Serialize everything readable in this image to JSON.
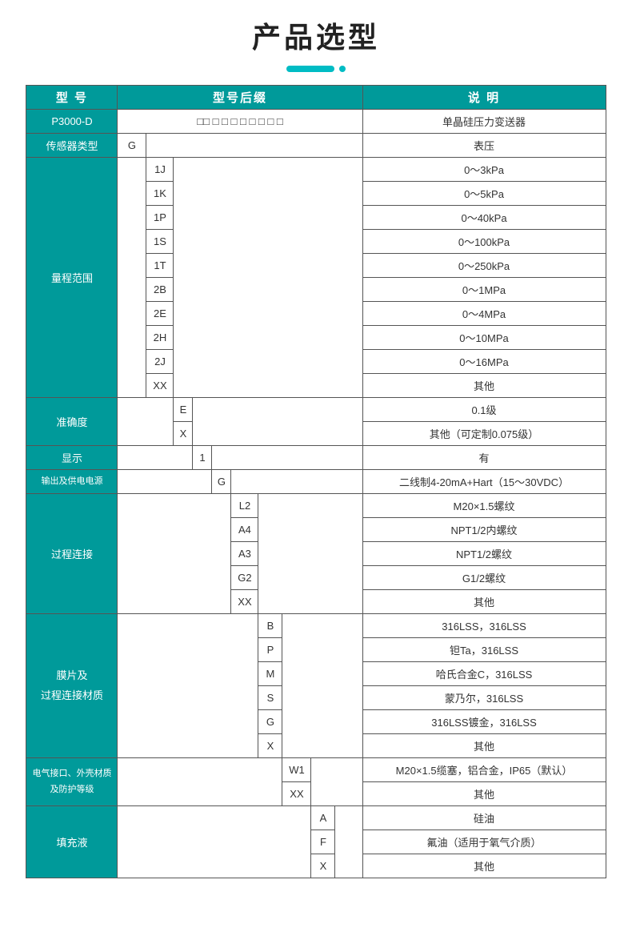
{
  "title": "产品选型",
  "colors": {
    "teal": "#009a9a",
    "accent": "#00bcc4",
    "border": "#555555",
    "text": "#333333",
    "white": "#ffffff"
  },
  "headers": {
    "model": "型 号",
    "suffix": "型号后缀",
    "desc": "说 明"
  },
  "model_id": "P3000-D",
  "placeholder_row": "□□  □  □ □ □ □  □  □  □",
  "labels": {
    "sensor_type": "传感器类型",
    "range": "量程范围",
    "accuracy": "准确度",
    "display": "显示",
    "output_power": "输出及供电电源",
    "process_conn": "过程连接",
    "diaphragm": "膜片及\n过程连接材质",
    "elec_case": "电气接口、外壳材质\n及防护等级",
    "fill_fluid": "填充液"
  },
  "sensor_type": {
    "code": "G",
    "desc": "表压"
  },
  "first_desc": "单晶硅压力变送器",
  "ranges": [
    {
      "code": "1J",
      "desc": "0～3kPa"
    },
    {
      "code": "1K",
      "desc": "0～5kPa"
    },
    {
      "code": "1P",
      "desc": "0～40kPa"
    },
    {
      "code": "1S",
      "desc": "0～100kPa"
    },
    {
      "code": "1T",
      "desc": "0～250kPa"
    },
    {
      "code": "2B",
      "desc": "0～1MPa"
    },
    {
      "code": "2E",
      "desc": "0～4MPa"
    },
    {
      "code": "2H",
      "desc": "0～10MPa"
    },
    {
      "code": "2J",
      "desc": "0～16MPa"
    },
    {
      "code": "XX",
      "desc": "其他"
    }
  ],
  "accuracy": [
    {
      "code": "E",
      "desc": "0.1级"
    },
    {
      "code": "X",
      "desc": "其他（可定制0.075级）"
    }
  ],
  "display": {
    "code": "1",
    "desc": "有"
  },
  "output_power": {
    "code": "G",
    "desc": "二线制4-20mA+Hart（15～30VDC）"
  },
  "process_conn": [
    {
      "code": "L2",
      "desc": "M20×1.5螺纹"
    },
    {
      "code": "A4",
      "desc": "NPT1/2内螺纹"
    },
    {
      "code": "A3",
      "desc": "NPT1/2螺纹"
    },
    {
      "code": "G2",
      "desc": "G1/2螺纹"
    },
    {
      "code": "XX",
      "desc": "其他"
    }
  ],
  "diaphragm": [
    {
      "code": "B",
      "desc": "316LSS，316LSS"
    },
    {
      "code": "P",
      "desc": "钽Ta，316LSS"
    },
    {
      "code": "M",
      "desc": "哈氏合金C，316LSS"
    },
    {
      "code": "S",
      "desc": "蒙乃尔，316LSS"
    },
    {
      "code": "G",
      "desc": "316LSS镀金，316LSS"
    },
    {
      "code": "X",
      "desc": "其他"
    }
  ],
  "elec_case": [
    {
      "code": "W1",
      "desc": "M20×1.5缆塞，铝合金，IP65（默认）"
    },
    {
      "code": "XX",
      "desc": "其他"
    }
  ],
  "fill_fluid": [
    {
      "code": "A",
      "desc": "硅油"
    },
    {
      "code": "F",
      "desc": "氟油（适用于氧气介质）"
    },
    {
      "code": "X",
      "desc": "其他"
    }
  ]
}
